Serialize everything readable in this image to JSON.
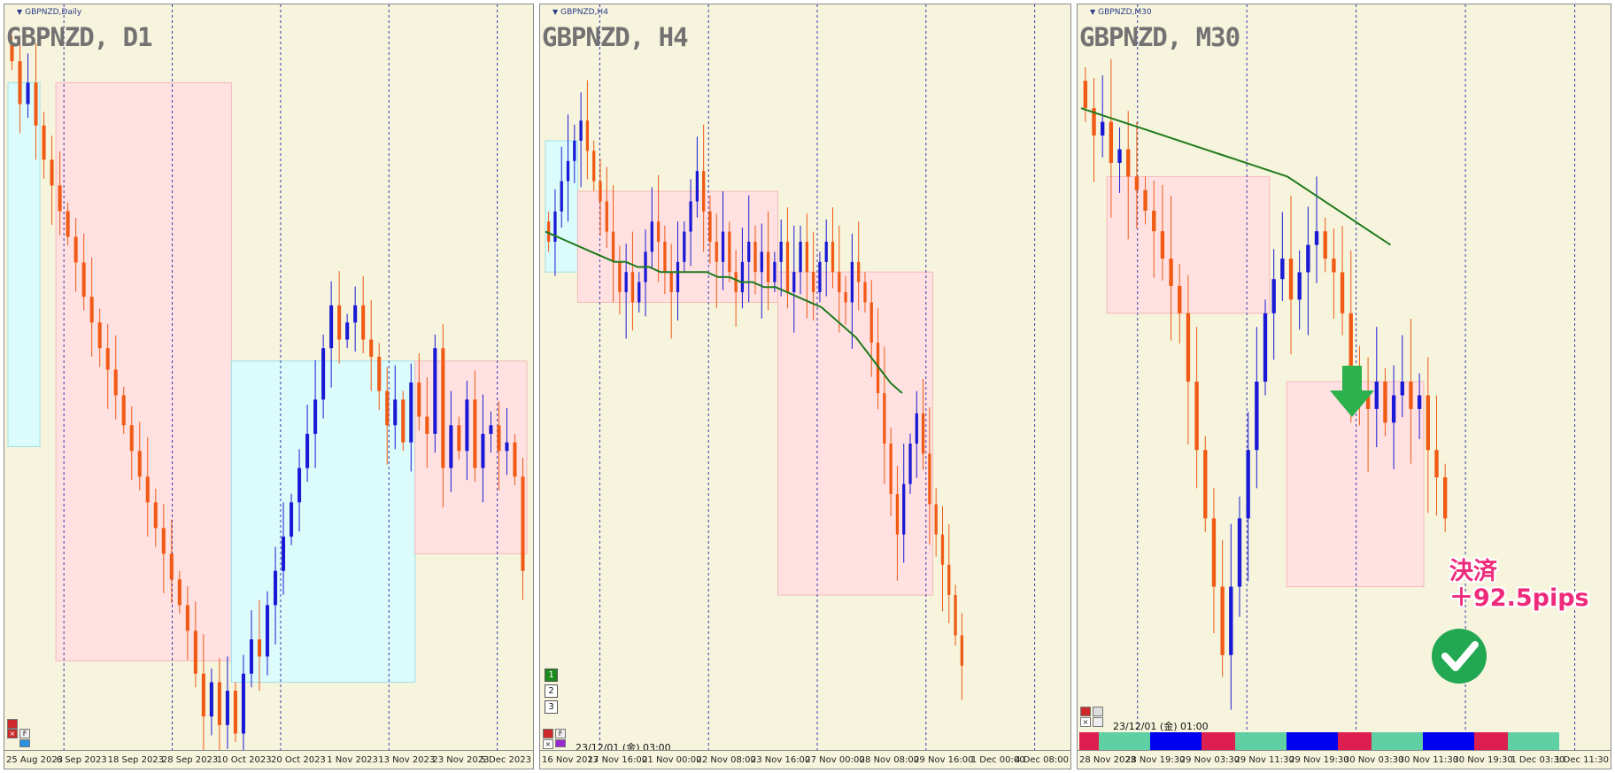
{
  "chart_data": [
    {
      "type": "candlestick",
      "title": "GBPNZD, D1",
      "window_label": "GBPNZD,Daily",
      "x_tick_labels": [
        "25 Aug 2023",
        "6 Sep 2023",
        "18 Sep 2023",
        "28 Sep 2023",
        "10 Oct 2023",
        "20 Oct 2023",
        "1 Nov 2023",
        "13 Nov 2023",
        "23 Nov 2023",
        "5 Dec 2023"
      ],
      "colors": {
        "up": "#1a1ad6",
        "down": "#f05a14",
        "sell_zone": "#ffe1e1",
        "buy_zone": "#dcfbfb",
        "grid": "#3a3ab0"
      },
      "close_series": [
        2.155,
        2.145,
        2.15,
        2.14,
        2.132,
        2.126,
        2.12,
        2.114,
        2.108,
        2.1,
        2.094,
        2.088,
        2.083,
        2.077,
        2.07,
        2.064,
        2.058,
        2.052,
        2.046,
        2.04,
        2.034,
        2.028,
        2.022,
        2.012,
        2.002,
        2.01,
        2.0,
        2.008,
        1.998,
        2.012,
        2.02,
        2.016,
        2.028,
        2.036,
        2.044,
        2.052,
        2.06,
        2.068,
        2.076,
        2.088,
        2.098,
        2.09,
        2.094,
        2.098,
        2.09,
        2.086,
        2.078,
        2.07,
        2.076,
        2.066,
        2.08,
        2.072,
        2.068,
        2.088,
        2.06,
        2.07,
        2.064,
        2.076,
        2.06,
        2.068,
        2.07,
        2.064,
        2.066,
        2.058,
        2.036
      ],
      "zones": [
        {
          "kind": "buy",
          "from": 0,
          "to": 4,
          "top": 2.15,
          "bottom": 2.065
        },
        {
          "kind": "sell",
          "from": 6,
          "to": 28,
          "top": 2.15,
          "bottom": 2.015
        },
        {
          "kind": "buy",
          "from": 28,
          "to": 51,
          "top": 2.085,
          "bottom": 2.01
        },
        {
          "kind": "sell",
          "from": 51,
          "to": 74,
          "top": 2.085,
          "bottom": 2.04
        }
      ],
      "y_range": [
        1.995,
        2.16
      ],
      "controls": {
        "close": "×",
        "f": "F"
      }
    },
    {
      "type": "candlestick",
      "title": "GBPNZD, H4",
      "window_label": "GBPNZD,H4",
      "x_tick_labels": [
        "16 Nov 2023",
        "17 Nov 16:00",
        "21 Nov 00:00",
        "22 Nov 08:00",
        "23 Nov 16:00",
        "27 Nov 00:00",
        "28 Nov 08:00",
        "29 Nov 16:00",
        "1 Dec 00:00",
        "4 Dec 08:00"
      ],
      "moving_average_color": "#1e7a1e",
      "timestamp": "23/12/01 (金) 03:00",
      "scale_buttons": [
        "1",
        "2",
        "3"
      ],
      "close_series": [
        2.07,
        2.076,
        2.082,
        2.086,
        2.09,
        2.094,
        2.088,
        2.082,
        2.078,
        2.072,
        2.066,
        2.06,
        2.064,
        2.058,
        2.062,
        2.068,
        2.074,
        2.07,
        2.064,
        2.06,
        2.066,
        2.072,
        2.078,
        2.084,
        2.076,
        2.07,
        2.066,
        2.072,
        2.064,
        2.06,
        2.066,
        2.07,
        2.064,
        2.068,
        2.062,
        2.066,
        2.07,
        2.06,
        2.064,
        2.07,
        2.064,
        2.06,
        2.066,
        2.07,
        2.064,
        2.06,
        2.058,
        2.066,
        2.062,
        2.058,
        2.05,
        2.04,
        2.03,
        2.02,
        2.012,
        2.022,
        2.03,
        2.036,
        2.028,
        2.018,
        2.012,
        2.006,
        2.0,
        1.992,
        1.986
      ],
      "ma_series": [
        2.072,
        2.071,
        2.07,
        2.069,
        2.068,
        2.067,
        2.066,
        2.066,
        2.065,
        2.065,
        2.064,
        2.064,
        2.064,
        2.064,
        2.064,
        2.063,
        2.063,
        2.062,
        2.062,
        2.061,
        2.061,
        2.06,
        2.059,
        2.058,
        2.057,
        2.055,
        2.053,
        2.051,
        2.048,
        2.045,
        2.042,
        2.04
      ],
      "zones": [
        {
          "kind": "buy",
          "from": 0,
          "to": 5,
          "top": 2.09,
          "bottom": 2.064
        },
        {
          "kind": "sell",
          "from": 5,
          "to": 36,
          "top": 2.08,
          "bottom": 2.058
        },
        {
          "kind": "sell",
          "from": 36,
          "to": 60,
          "top": 2.064,
          "bottom": 2.0
        }
      ],
      "y_range": [
        1.97,
        2.11
      ],
      "controls": {
        "close": "×",
        "f": "F"
      }
    },
    {
      "type": "candlestick",
      "title": "GBPNZD, M30",
      "window_label": "GBPNZD,M30",
      "x_tick_labels": [
        "28 Nov 2023",
        "28 Nov 19:30",
        "29 Nov 03:30",
        "29 Nov 11:30",
        "29 Nov 19:30",
        "30 Nov 03:30",
        "30 Nov 11:30",
        "30 Nov 19:30",
        "1 Dec 03:30",
        "1 Dec 11:30"
      ],
      "moving_average_color": "#1e7a1e",
      "timestamp": "23/12/01 (金) 01:00",
      "annotation": {
        "line1": "決済",
        "line2": "＋92.5pips"
      },
      "signal_arrow": "down-arrow",
      "check_icon": "check-circle-icon",
      "strip_colors": [
        "#dd1f4f",
        "#5fcfa4",
        "#0000f0",
        "#dd1f4f",
        "#5fcfa4",
        "#0000f0",
        "#dd1f4f",
        "#5fcfa4",
        "#0000f0",
        "#dd1f4f",
        "#5fcfa4"
      ],
      "close_series": [
        2.07,
        2.066,
        2.068,
        2.062,
        2.064,
        2.06,
        2.058,
        2.055,
        2.052,
        2.048,
        2.044,
        2.04,
        2.03,
        2.02,
        2.01,
        2.0,
        1.99,
        2.0,
        2.01,
        2.02,
        2.03,
        2.04,
        2.045,
        2.048,
        2.042,
        2.046,
        2.05,
        2.052,
        2.048,
        2.046,
        2.04,
        2.032,
        2.028,
        2.026,
        2.03,
        2.024,
        2.028,
        2.03,
        2.026,
        2.028,
        2.02,
        2.016,
        2.01
      ],
      "ma_series": [
        2.07,
        2.069,
        2.068,
        2.067,
        2.066,
        2.065,
        2.064,
        2.063,
        2.062,
        2.061,
        2.06,
        2.058,
        2.056,
        2.054,
        2.052,
        2.05
      ],
      "zones": [
        {
          "kind": "sell",
          "from": 3,
          "to": 22,
          "top": 2.06,
          "bottom": 2.04
        },
        {
          "kind": "sell",
          "from": 24,
          "to": 40,
          "top": 2.03,
          "bottom": 2.0
        }
      ],
      "y_range": [
        1.98,
        2.08
      ],
      "controls": {
        "close": "×"
      }
    }
  ]
}
